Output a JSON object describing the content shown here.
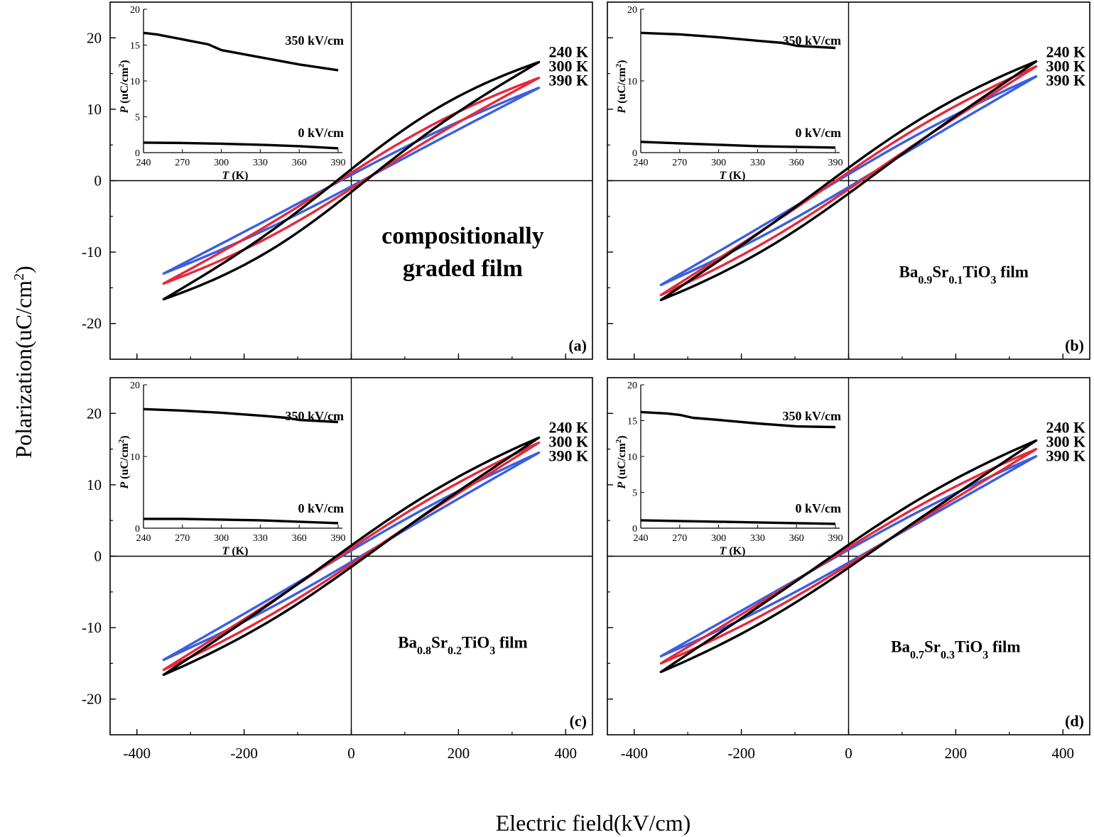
{
  "figure": {
    "ylabel": "Polarization(uC/cm",
    "ylabel_sup": "2",
    "ylabel_end": ")",
    "xlabel": "Electric field(kV/cm)"
  },
  "colors": {
    "t240": "#000000",
    "t300": "#e8283a",
    "t390": "#3a5fe0"
  },
  "chart_data": [
    {
      "type": "line",
      "panel": "(a)",
      "title_lines": [
        "compositionally",
        "graded film"
      ],
      "x_range": [
        -450,
        450
      ],
      "y_range": [
        -25,
        25
      ],
      "x_ticks": [
        -400,
        -200,
        0,
        200,
        400
      ],
      "y_ticks": [
        20,
        10,
        0,
        -10,
        -20
      ],
      "series": [
        {
          "name": "240 K",
          "Pmax": 16.6,
          "Pr": 1.6,
          "bulge": 0.35
        },
        {
          "name": "300 K",
          "Pmax": 14.4,
          "Pr": 1.1,
          "bulge": 0.22
        },
        {
          "name": "390 K",
          "Pmax": 13.0,
          "Pr": 0.8,
          "bulge": 0.1
        }
      ],
      "inset": {
        "xlabel": "T",
        "xunit": " (K)",
        "ylabel": "P",
        "yunit": " (uC/cm",
        "yunit_sup": "2",
        "yunit_end": ")",
        "x_range": [
          240,
          390
        ],
        "y_range": [
          0,
          20
        ],
        "x_ticks": [
          240,
          270,
          300,
          330,
          360,
          390
        ],
        "y_ticks": [
          0,
          5,
          10,
          15,
          20
        ],
        "series": [
          {
            "name": "350 kV/cm",
            "T": [
              240,
              250,
              270,
              290,
              300,
              330,
              360,
              390
            ],
            "P": [
              16.7,
              16.5,
              15.8,
              15.1,
              14.3,
              13.3,
              12.3,
              11.5
            ]
          },
          {
            "name": "0 kV/cm",
            "T": [
              240,
              270,
              300,
              330,
              360,
              390
            ],
            "P": [
              1.4,
              1.35,
              1.25,
              1.1,
              0.9,
              0.6
            ]
          }
        ]
      }
    },
    {
      "type": "line",
      "panel": "(b)",
      "film": {
        "a": "Ba",
        "a_sub": "0.9",
        "b": "Sr",
        "b_sub": "0.1",
        "c": "TiO",
        "c_sub": "3",
        "d": " film"
      },
      "x_range": [
        -450,
        450
      ],
      "y_range": [
        -25,
        25
      ],
      "x_ticks": [
        -400,
        -200,
        0,
        200,
        400
      ],
      "y_ticks": [
        20,
        10,
        0,
        -10,
        -20
      ],
      "series": [
        {
          "name": "240 K",
          "Pmax": 16.7,
          "Pr": 1.8,
          "bulge": 0.2
        },
        {
          "name": "300 K",
          "Pmax": 16.0,
          "Pr": 1.2,
          "bulge": 0.15
        },
        {
          "name": "390 K",
          "Pmax": 14.6,
          "Pr": 0.9,
          "bulge": 0.1
        }
      ],
      "inset": {
        "xlabel": "T",
        "xunit": " (K)",
        "ylabel": "P",
        "yunit": " (uC/cm",
        "yunit_sup": "2",
        "yunit_end": ")",
        "x_range": [
          240,
          390
        ],
        "y_range": [
          0,
          20
        ],
        "x_ticks": [
          240,
          270,
          300,
          330,
          360,
          390
        ],
        "y_ticks": [
          0,
          10,
          20
        ],
        "series": [
          {
            "name": "350 kV/cm",
            "T": [
              240,
              270,
              300,
              330,
              350,
              360,
              390
            ],
            "P": [
              16.7,
              16.5,
              16.1,
              15.6,
              15.3,
              14.9,
              14.6
            ]
          },
          {
            "name": "0 kV/cm",
            "T": [
              240,
              270,
              300,
              330,
              360,
              390
            ],
            "P": [
              1.5,
              1.3,
              1.1,
              0.9,
              0.8,
              0.7
            ]
          }
        ]
      }
    },
    {
      "type": "line",
      "panel": "(c)",
      "film": {
        "a": "Ba",
        "a_sub": "0.8",
        "b": "Sr",
        "b_sub": "0.2",
        "c": "TiO",
        "c_sub": "3",
        "d": " film"
      },
      "x_range": [
        -450,
        450
      ],
      "y_range": [
        -25,
        25
      ],
      "x_ticks": [
        -400,
        -200,
        0,
        200,
        400
      ],
      "y_ticks": [
        20,
        10,
        0,
        -10,
        -20
      ],
      "series": [
        {
          "name": "240 K",
          "Pmax": 16.6,
          "Pr": 1.5,
          "bulge": 0.18
        },
        {
          "name": "300 K",
          "Pmax": 15.9,
          "Pr": 1.1,
          "bulge": 0.14
        },
        {
          "name": "390 K",
          "Pmax": 14.5,
          "Pr": 0.8,
          "bulge": 0.1
        }
      ],
      "inset": {
        "xlabel": "T",
        "xunit": " (K)",
        "ylabel": "P",
        "yunit": " (uC/cm",
        "yunit_sup": "2",
        "yunit_end": ")",
        "x_range": [
          240,
          390
        ],
        "y_range": [
          0,
          20
        ],
        "x_ticks": [
          240,
          270,
          300,
          330,
          360,
          390
        ],
        "y_ticks": [
          0,
          10,
          20
        ],
        "series": [
          {
            "name": "350 kV/cm",
            "T": [
              240,
              270,
              300,
              330,
              350,
              360,
              390
            ],
            "P": [
              16.6,
              16.4,
              16.1,
              15.7,
              15.4,
              15.1,
              14.8
            ]
          },
          {
            "name": "0 kV/cm",
            "T": [
              240,
              270,
              300,
              330,
              360,
              390
            ],
            "P": [
              1.3,
              1.3,
              1.2,
              1.1,
              0.9,
              0.7
            ]
          }
        ]
      }
    },
    {
      "type": "line",
      "panel": "(d)",
      "film": {
        "a": "Ba",
        "a_sub": "0.7",
        "b": "Sr",
        "b_sub": "0.3",
        "c": "TiO",
        "c_sub": "3",
        "d": " film"
      },
      "x_range": [
        -450,
        450
      ],
      "y_range": [
        -25,
        25
      ],
      "x_ticks": [
        -400,
        -200,
        0,
        200,
        400
      ],
      "y_ticks": [
        20,
        10,
        0,
        -10,
        -20
      ],
      "series": [
        {
          "name": "240 K",
          "Pmax": 16.2,
          "Pr": 1.6,
          "bulge": 0.15
        },
        {
          "name": "300 K",
          "Pmax": 15.0,
          "Pr": 1.2,
          "bulge": 0.12
        },
        {
          "name": "390 K",
          "Pmax": 14.0,
          "Pr": 0.9,
          "bulge": 0.08
        }
      ],
      "inset": {
        "xlabel": "T",
        "xunit": " (K)",
        "ylabel": "P",
        "yunit": " (uC/cm",
        "yunit_sup": "2",
        "yunit_end": ")",
        "x_range": [
          240,
          390
        ],
        "y_range": [
          0,
          20
        ],
        "x_ticks": [
          240,
          270,
          300,
          330,
          360,
          390
        ],
        "y_ticks": [
          0,
          5,
          10,
          15,
          20
        ],
        "series": [
          {
            "name": "350 kV/cm",
            "T": [
              240,
              260,
              270,
              280,
              300,
              330,
              360,
              390
            ],
            "P": [
              16.2,
              16.0,
              15.8,
              15.4,
              15.1,
              14.6,
              14.2,
              14.1
            ]
          },
          {
            "name": "0 kV/cm",
            "T": [
              240,
              270,
              300,
              330,
              360,
              390
            ],
            "P": [
              1.1,
              1.0,
              0.9,
              0.8,
              0.7,
              0.6
            ]
          }
        ]
      }
    }
  ]
}
